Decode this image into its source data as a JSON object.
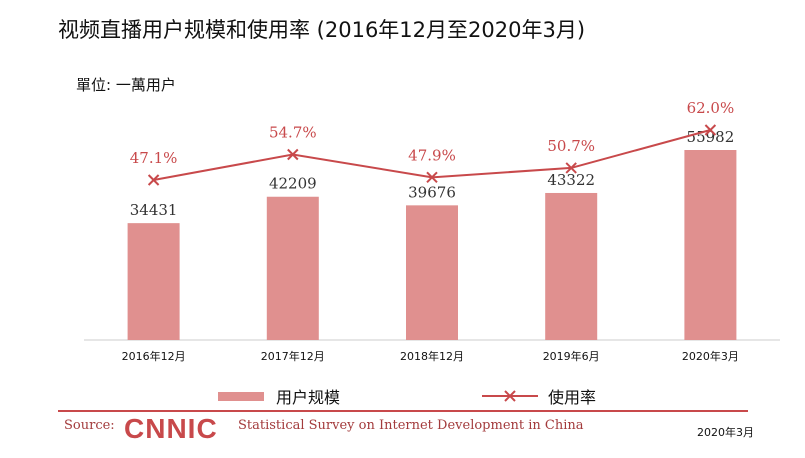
{
  "title": "视频直播用户规模和使用率 (2016年12月至2020年3月)",
  "unit": "單位: 一萬用户",
  "chart_data": {
    "type": "bar",
    "categories": [
      "2016年12月",
      "2017年12月",
      "2018年12月",
      "2019年6月",
      "2020年3月"
    ],
    "series": [
      {
        "name": "用户规模",
        "type": "bar",
        "values": [
          34431,
          42209,
          39676,
          43322,
          55982
        ],
        "labels": [
          "34431",
          "42209",
          "39676",
          "43322",
          "55982"
        ]
      },
      {
        "name": "使用率",
        "type": "line",
        "values": [
          47.1,
          54.7,
          47.9,
          50.7,
          62.0
        ],
        "labels": [
          "47.1%",
          "54.7%",
          "47.9%",
          "50.7%",
          "62.0%"
        ]
      }
    ],
    "colors": {
      "bar": "#e0908f",
      "line": "#c8494b",
      "axis": "#cccccc"
    }
  },
  "legend": {
    "bar_label": "用户规模",
    "line_label": "使用率"
  },
  "footer": {
    "source_label": "Source:",
    "logo_text": "CNNIC",
    "survey_text": "Statistical Survey on Internet Development in China",
    "date": "2020年3月"
  }
}
